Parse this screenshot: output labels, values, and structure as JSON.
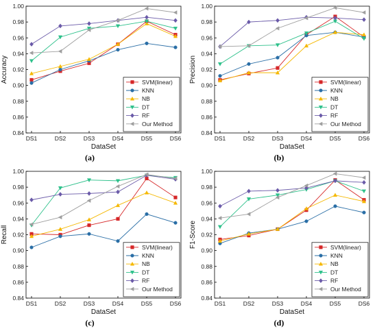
{
  "chart_data": [
    {
      "type": "line",
      "panel_label": "(a)",
      "xlabel": "DataSet",
      "ylabel": "Accuracy",
      "categories": [
        "DS1",
        "DS2",
        "DS3",
        "DS4",
        "DS5",
        "DS6"
      ],
      "ylim": [
        0.84,
        1.0
      ],
      "yticks": [
        "0.84",
        "0.86",
        "0.88",
        "0.90",
        "0.92",
        "0.94",
        "0.96",
        "0.98",
        "1.00"
      ],
      "legend_position": "bottom-right",
      "series": [
        {
          "name": "SVM(linear)",
          "color": "#d62728",
          "marker": "square",
          "values": [
            0.907,
            0.918,
            0.928,
            0.952,
            0.981,
            0.964
          ]
        },
        {
          "name": "KNN",
          "color": "#2a6ea6",
          "marker": "circle",
          "values": [
            0.903,
            0.92,
            0.931,
            0.945,
            0.953,
            0.948
          ]
        },
        {
          "name": "NB",
          "color": "#f5b800",
          "marker": "triangle-up",
          "values": [
            0.915,
            0.924,
            0.933,
            0.952,
            0.978,
            0.962
          ]
        },
        {
          "name": "DT",
          "color": "#2cc08a",
          "marker": "triangle-down",
          "values": [
            0.931,
            0.961,
            0.972,
            0.975,
            0.981,
            0.972
          ]
        },
        {
          "name": "RF",
          "color": "#6a5aa8",
          "marker": "diamond",
          "values": [
            0.952,
            0.975,
            0.978,
            0.982,
            0.986,
            0.982
          ]
        },
        {
          "name": "Our Method",
          "color": "#9e9e9e",
          "marker": "triangle-left",
          "values": [
            0.941,
            0.943,
            0.97,
            0.982,
            0.997,
            0.992
          ]
        }
      ]
    },
    {
      "type": "line",
      "panel_label": "(b)",
      "xlabel": "DataSet",
      "ylabel": "Precision",
      "categories": [
        "DS1",
        "DS2",
        "DS3",
        "DS4",
        "DS5",
        "DS6"
      ],
      "ylim": [
        0.84,
        1.0
      ],
      "yticks": [
        "0.84",
        "0.86",
        "0.88",
        "0.90",
        "0.92",
        "0.94",
        "0.96",
        "0.98",
        "1.00"
      ],
      "legend_position": "bottom-right",
      "series": [
        {
          "name": "SVM(linear)",
          "color": "#d62728",
          "marker": "square",
          "values": [
            0.907,
            0.915,
            0.922,
            0.964,
            0.987,
            0.961
          ]
        },
        {
          "name": "KNN",
          "color": "#2a6ea6",
          "marker": "circle",
          "values": [
            0.912,
            0.927,
            0.935,
            0.963,
            0.967,
            0.961
          ]
        },
        {
          "name": "NB",
          "color": "#f5b800",
          "marker": "triangle-up",
          "values": [
            0.906,
            0.916,
            0.916,
            0.95,
            0.967,
            0.964
          ]
        },
        {
          "name": "DT",
          "color": "#2cc08a",
          "marker": "triangle-down",
          "values": [
            0.927,
            0.95,
            0.951,
            0.966,
            0.981,
            0.959
          ]
        },
        {
          "name": "RF",
          "color": "#6a5aa8",
          "marker": "diamond",
          "values": [
            0.949,
            0.98,
            0.982,
            0.986,
            0.985,
            0.983
          ]
        },
        {
          "name": "Our Method",
          "color": "#9e9e9e",
          "marker": "triangle-left",
          "values": [
            0.949,
            0.95,
            0.972,
            0.985,
            0.998,
            0.992
          ]
        }
      ]
    },
    {
      "type": "line",
      "panel_label": "(c)",
      "xlabel": "DataSet",
      "ylabel": "Recall",
      "categories": [
        "DS1",
        "DS2",
        "DS3",
        "DS4",
        "DS5",
        "DS6"
      ],
      "ylim": [
        0.84,
        1.0
      ],
      "yticks": [
        "0.84",
        "0.86",
        "0.88",
        "0.90",
        "0.92",
        "0.94",
        "0.96",
        "0.98",
        "1.00"
      ],
      "legend_position": "bottom-right",
      "series": [
        {
          "name": "SVM(linear)",
          "color": "#d62728",
          "marker": "square",
          "values": [
            0.921,
            0.92,
            0.932,
            0.94,
            0.991,
            0.967
          ]
        },
        {
          "name": "KNN",
          "color": "#2a6ea6",
          "marker": "circle",
          "values": [
            0.904,
            0.918,
            0.921,
            0.912,
            0.946,
            0.935
          ]
        },
        {
          "name": "NB",
          "color": "#f5b800",
          "marker": "triangle-up",
          "values": [
            0.918,
            0.927,
            0.939,
            0.957,
            0.973,
            0.96
          ]
        },
        {
          "name": "DT",
          "color": "#2cc08a",
          "marker": "triangle-down",
          "values": [
            0.932,
            0.979,
            0.989,
            0.988,
            0.995,
            0.992
          ]
        },
        {
          "name": "RF",
          "color": "#6a5aa8",
          "marker": "diamond",
          "values": [
            0.964,
            0.971,
            0.972,
            0.974,
            0.995,
            0.99
          ]
        },
        {
          "name": "Our Method",
          "color": "#9e9e9e",
          "marker": "triangle-left",
          "values": [
            0.933,
            0.942,
            0.963,
            0.981,
            0.996,
            0.991
          ]
        }
      ]
    },
    {
      "type": "line",
      "panel_label": "(d)",
      "xlabel": "DataSet",
      "ylabel": "F1-Score",
      "categories": [
        "DS1",
        "DS2",
        "DS3",
        "DS4",
        "DS5",
        "DS6"
      ],
      "ylim": [
        0.84,
        1.0
      ],
      "yticks": [
        "0.84",
        "0.86",
        "0.88",
        "0.90",
        "0.92",
        "0.94",
        "0.96",
        "0.98",
        "1.00"
      ],
      "legend_position": "bottom-right",
      "series": [
        {
          "name": "SVM(linear)",
          "color": "#d62728",
          "marker": "square",
          "values": [
            0.914,
            0.919,
            0.927,
            0.951,
            0.989,
            0.964
          ]
        },
        {
          "name": "KNN",
          "color": "#2a6ea6",
          "marker": "circle",
          "values": [
            0.909,
            0.922,
            0.927,
            0.937,
            0.956,
            0.948
          ]
        },
        {
          "name": "NB",
          "color": "#f5b800",
          "marker": "triangle-up",
          "values": [
            0.912,
            0.921,
            0.927,
            0.953,
            0.97,
            0.962
          ]
        },
        {
          "name": "DT",
          "color": "#2cc08a",
          "marker": "triangle-down",
          "values": [
            0.93,
            0.965,
            0.97,
            0.977,
            0.988,
            0.975
          ]
        },
        {
          "name": "RF",
          "color": "#6a5aa8",
          "marker": "diamond",
          "values": [
            0.956,
            0.975,
            0.976,
            0.979,
            0.988,
            0.986
          ]
        },
        {
          "name": "Our Method",
          "color": "#9e9e9e",
          "marker": "triangle-left",
          "values": [
            0.941,
            0.946,
            0.967,
            0.982,
            0.997,
            0.992
          ]
        }
      ]
    }
  ]
}
